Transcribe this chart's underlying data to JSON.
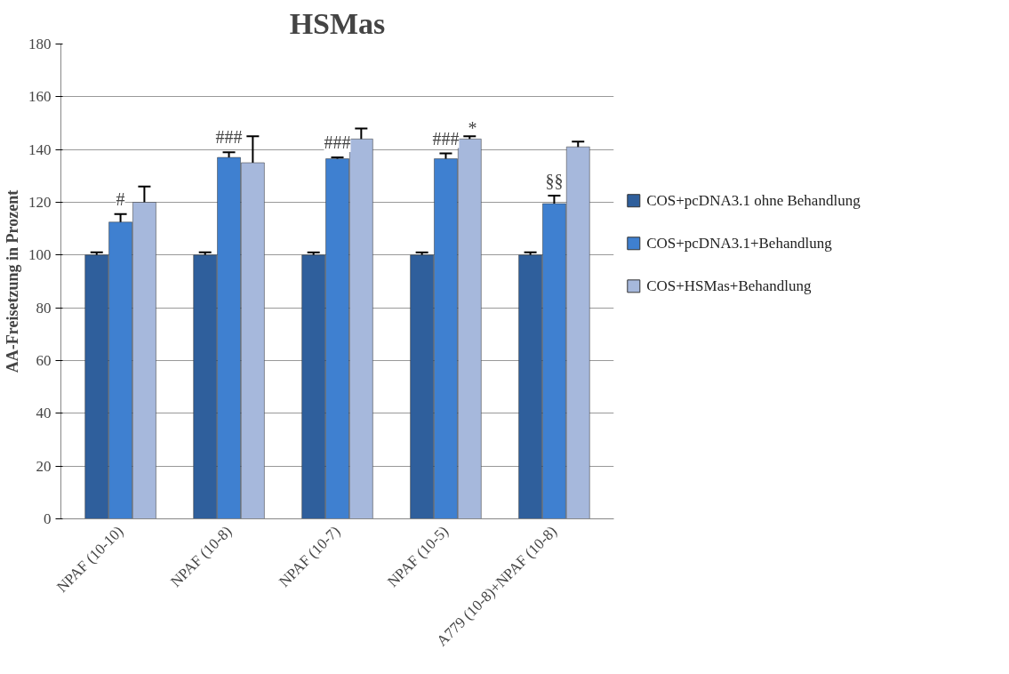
{
  "chart_data": {
    "type": "bar",
    "title": "HSMas",
    "ylabel": "AA-Freisetzung in Prozent",
    "categories": [
      "NPAF (10-10)",
      "NPAF (10-8)",
      "NPAF (10-7)",
      "NPAF (10-5)",
      "A779 (10-8)+NPAF (10-8)"
    ],
    "series": [
      {
        "name": "COS+pcDNA3.1 ohne Behandlung",
        "color": "#2f5f9c",
        "values": [
          100,
          100,
          100,
          100,
          100
        ],
        "errors": [
          1,
          1,
          1,
          1,
          1
        ]
      },
      {
        "name": "COS+pcDNA3.1+Behandlung",
        "color": "#3f80d0",
        "values": [
          112.5,
          137,
          136.5,
          136.5,
          119.5
        ],
        "errors": [
          3,
          2,
          0.5,
          2,
          3
        ]
      },
      {
        "name": "COS+HSMas+Behandlung",
        "color": "#a6b8dc",
        "values": [
          120,
          135,
          144,
          144,
          141
        ],
        "errors": [
          6,
          10,
          4,
          1,
          2
        ]
      }
    ],
    "ylim": [
      0,
      180
    ],
    "yticks": [
      0,
      20,
      40,
      60,
      80,
      100,
      120,
      140,
      160,
      180
    ],
    "grid": "y",
    "legend": "right",
    "annotations": [
      {
        "text": "#",
        "x": "NPAF (10-10)",
        "y": 112.5
      },
      {
        "text": "###",
        "x": "NPAF (10-8)",
        "y": 137
      },
      {
        "text": "###",
        "x": "NPAF (10-7)",
        "y": 136.5
      },
      {
        "text": "###",
        "x": "NPAF (10-5)",
        "y": 136.5
      },
      "*",
      {
        "text": "§§",
        "x": "A779 (10-8)+NPAF (10-8)",
        "y": 119.5
      }
    ]
  }
}
